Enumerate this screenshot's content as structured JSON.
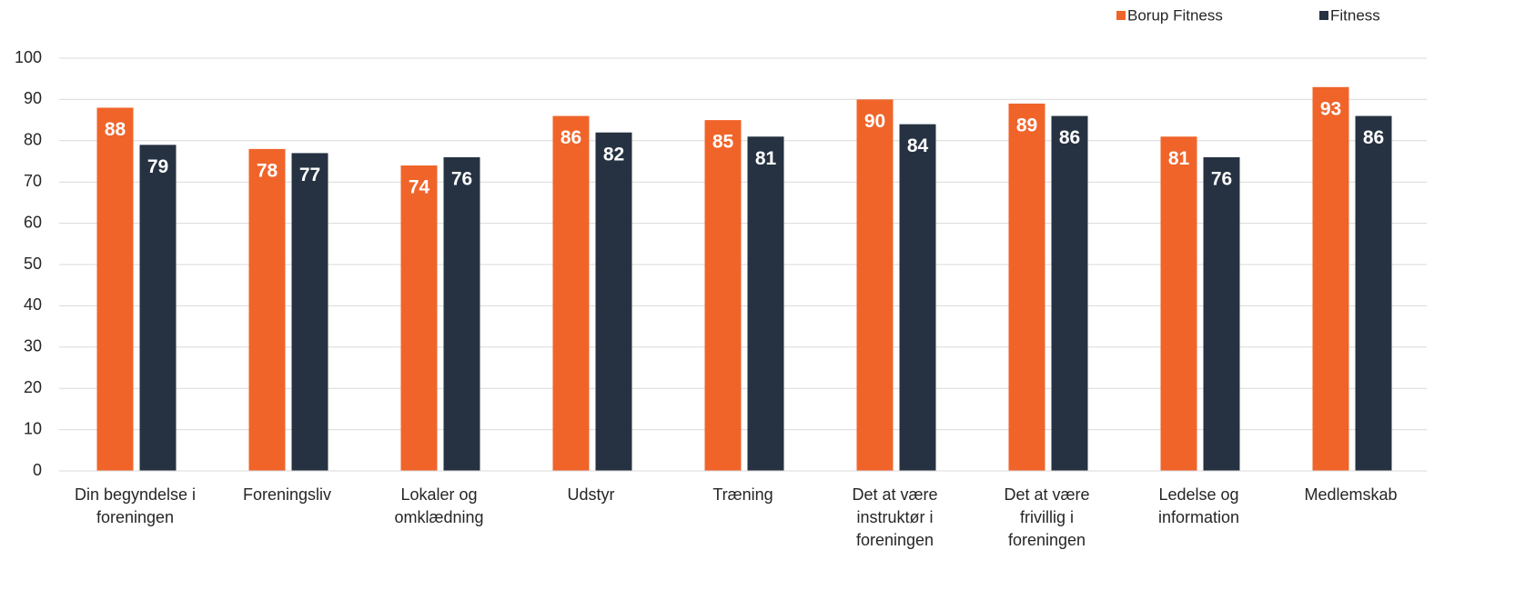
{
  "chart_data": {
    "type": "bar",
    "categories": [
      "Din begyndelse i foreningen",
      "Foreningsliv",
      "Lokaler og omklædning",
      "Udstyr",
      "Træning",
      "Det at være instruktør i foreningen",
      "Det at være frivillig i foreningen",
      "Ledelse og information",
      "Medlemskab"
    ],
    "series": [
      {
        "name": "Borup Fitness",
        "color": "#f0642a",
        "values": [
          88,
          78,
          74,
          86,
          85,
          90,
          89,
          81,
          93
        ]
      },
      {
        "name": "Fitness",
        "color": "#263242",
        "values": [
          79,
          77,
          76,
          82,
          81,
          84,
          86,
          76,
          86
        ]
      }
    ],
    "ylim": [
      0,
      100
    ],
    "yticks": [
      0,
      10,
      20,
      30,
      40,
      50,
      60,
      70,
      80,
      90,
      100
    ],
    "grid": true,
    "legend": "top-right"
  }
}
